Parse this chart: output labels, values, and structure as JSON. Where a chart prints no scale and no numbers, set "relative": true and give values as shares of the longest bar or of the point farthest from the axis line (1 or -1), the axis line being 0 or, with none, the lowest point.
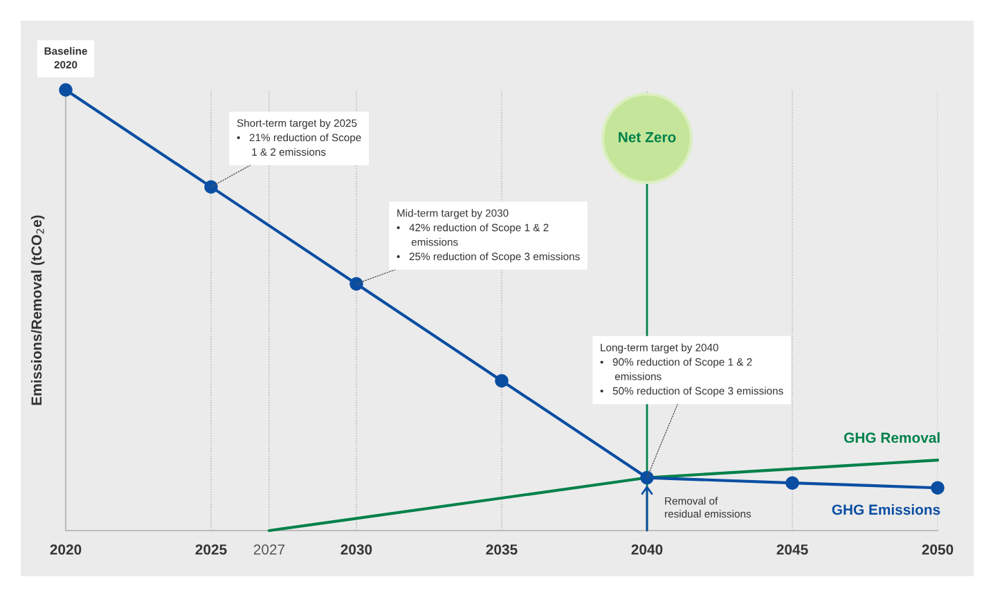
{
  "chart_data": {
    "type": "line",
    "relative": true,
    "ylabel": "Emissions/Removal (tCO$_{2}$e)",
    "xlim": [
      2020,
      2050
    ],
    "xticks": [
      2020,
      2025,
      2027,
      2030,
      2035,
      2040,
      2045,
      2050
    ],
    "grid": "x",
    "legend": false,
    "series": [
      {
        "name": "GHG Emissions",
        "color": "#0a4ea2",
        "x": [
          2020,
          2025,
          2030,
          2035,
          2040,
          2045,
          2050
        ],
        "values": [
          1,
          0.78,
          0.56,
          0.34,
          0.12,
          0.108,
          0.097
        ],
        "marker": "circle"
      },
      {
        "name": "GHG Removal",
        "color": "#00814a",
        "x": [
          2027,
          2040,
          2050
        ],
        "values": [
          0,
          0.12,
          0.16
        ],
        "marker": "none"
      }
    ],
    "ref_lines": [
      {
        "axis": "x",
        "value": 2040,
        "label": "Net Zero",
        "color": "#00814a"
      }
    ],
    "annotations": [
      {
        "text": "Baseline\n2020",
        "x": 2020,
        "y": 1
      },
      {
        "text": "Short-term target by 2025\n•   21% reduction of Scope\n     1 & 2 emissions",
        "x": 2025,
        "y": 0.78
      },
      {
        "text": "Mid-term target by 2030\n•   42% reduction of Scope 1 & 2\n     emissions\n•   25% reduction of Scope 3 emissions",
        "x": 2030,
        "y": 0.56
      },
      {
        "text": "Long-term target by 2040\n•   90% reduction of Scope 1 & 2\n     emissions\n•   50% reduction of Scope 3 emissions",
        "x": 2040,
        "y": 0.12
      },
      {
        "text": "Removal of\nresidual emissions",
        "x": 2040,
        "y": 0.12
      }
    ]
  }
}
